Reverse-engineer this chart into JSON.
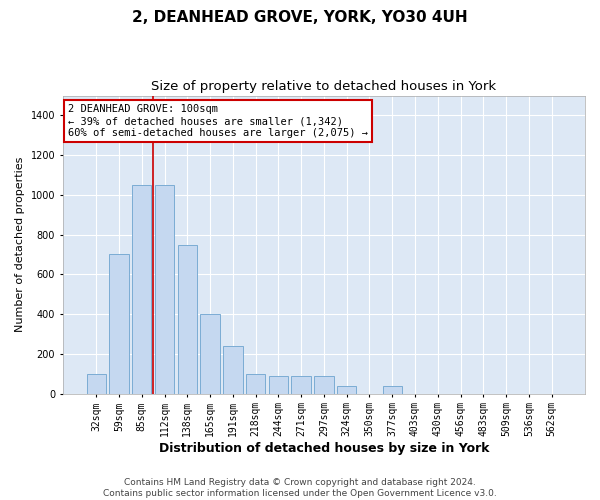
{
  "title": "2, DEANHEAD GROVE, YORK, YO30 4UH",
  "subtitle": "Size of property relative to detached houses in York",
  "xlabel": "Distribution of detached houses by size in York",
  "ylabel": "Number of detached properties",
  "categories": [
    "32sqm",
    "59sqm",
    "85sqm",
    "112sqm",
    "138sqm",
    "165sqm",
    "191sqm",
    "218sqm",
    "244sqm",
    "271sqm",
    "297sqm",
    "324sqm",
    "350sqm",
    "377sqm",
    "403sqm",
    "430sqm",
    "456sqm",
    "483sqm",
    "509sqm",
    "536sqm",
    "562sqm"
  ],
  "values": [
    100,
    700,
    1050,
    1050,
    750,
    400,
    240,
    100,
    90,
    90,
    90,
    40,
    0,
    40,
    0,
    0,
    0,
    0,
    0,
    0,
    0
  ],
  "bar_color": "#c5d8f0",
  "bar_edge_color": "#7bacd4",
  "red_line_index": 2.5,
  "annotation_text": "2 DEANHEAD GROVE: 100sqm\n← 39% of detached houses are smaller (1,342)\n60% of semi-detached houses are larger (2,075) →",
  "annotation_box_color": "#ffffff",
  "annotation_box_edge": "#cc0000",
  "red_line_color": "#cc0000",
  "ylim": [
    0,
    1500
  ],
  "yticks": [
    0,
    200,
    400,
    600,
    800,
    1000,
    1200,
    1400
  ],
  "bg_color": "#dde8f5",
  "grid_color": "#ffffff",
  "footer1": "Contains HM Land Registry data © Crown copyright and database right 2024.",
  "footer2": "Contains public sector information licensed under the Open Government Licence v3.0.",
  "title_fontsize": 11,
  "subtitle_fontsize": 9.5,
  "xlabel_fontsize": 9,
  "ylabel_fontsize": 8,
  "tick_fontsize": 7,
  "annotation_fontsize": 7.5,
  "footer_fontsize": 6.5
}
